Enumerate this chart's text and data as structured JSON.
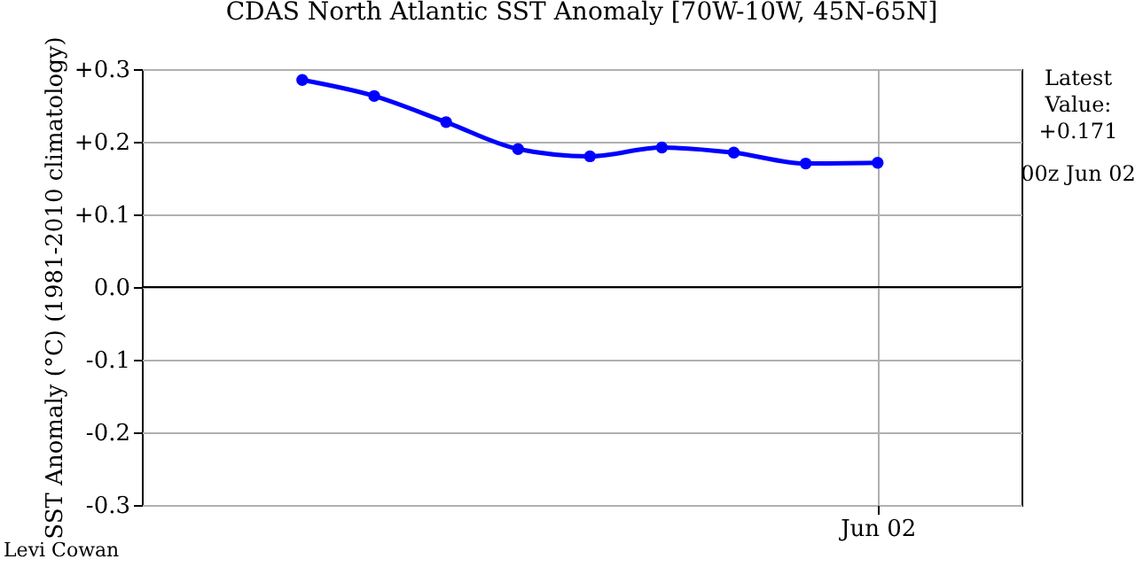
{
  "chart_data": {
    "type": "line",
    "title": "CDAS North Atlantic SST Anomaly [70W-10W, 45N-65N]",
    "ylabel": "SST Anomaly (°C) (1981-2010 climatology)",
    "categories": [
      null,
      null,
      null,
      null,
      null,
      null,
      null,
      null,
      "Jun 02"
    ],
    "series": [
      {
        "color": "#0000ff",
        "values": [
          0.285,
          0.263,
          0.227,
          0.19,
          0.18,
          0.192,
          0.185,
          0.17,
          0.171
        ]
      }
    ],
    "ylim": [
      -0.3,
      0.3
    ],
    "yticks": [
      {
        "value": 0.3,
        "label": "+0.3"
      },
      {
        "value": 0.2,
        "label": "+0.2"
      },
      {
        "value": 0.1,
        "label": "+0.1"
      },
      {
        "value": 0,
        "label": "0.0"
      },
      {
        "value": -0.1,
        "label": "-0.1"
      },
      {
        "value": -0.2,
        "label": "-0.2"
      },
      {
        "value": -0.3,
        "label": "-0.3"
      }
    ],
    "ref_lines": [
      {
        "axis": "y",
        "value": 0,
        "color": "#000000"
      }
    ],
    "grid": true,
    "marker": "circle",
    "line_style": "solid",
    "annotations": [
      "Latest Value: +0.171",
      "00z Jun 02",
      "Levi Cowan"
    ]
  }
}
